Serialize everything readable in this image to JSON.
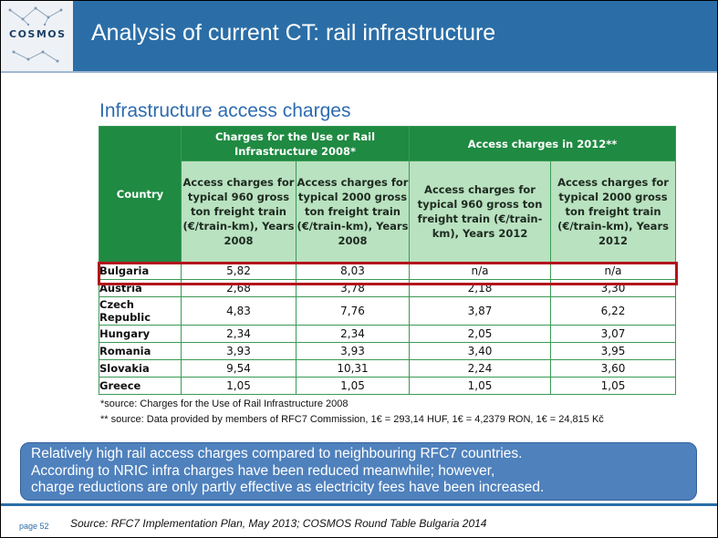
{
  "header": {
    "logo": "COSMOS",
    "title": "Analysis of current CT: rail infrastructure"
  },
  "subtitle": "Infrastructure access charges",
  "table": {
    "country_header": "Country",
    "group_2008": "Charges for the Use or Rail Infrastructure 2008*",
    "group_2012": "Access charges  in 2012**",
    "columns": [
      "Access charges for typical 960 gross ton freight train (€/train-km), Years 2008",
      "Access charges for typical 2000 gross ton freight train (€/train-km), Years 2008",
      "Access charges for typical 960 gross ton freight train (€/train-km), Years 2012",
      "Access charges  for typical 2000 gross ton freight train (€/train-km), Years 2012"
    ],
    "rows": [
      {
        "country": "Bulgaria",
        "values": [
          "5,82",
          "8,03",
          "n/a",
          "n/a"
        ]
      },
      {
        "country": "Austria",
        "values": [
          "2,68",
          "3,78",
          "2,18",
          "3,30"
        ]
      },
      {
        "country": "Czech Republic",
        "values": [
          "4,83",
          "7,76",
          "3,87",
          "6,22"
        ]
      },
      {
        "country": "Hungary",
        "values": [
          "2,34",
          "2,34",
          "2,05",
          "3,07"
        ]
      },
      {
        "country": "Romania",
        "values": [
          "3,93",
          "3,93",
          "3,40",
          "3,95"
        ]
      },
      {
        "country": "Slovakia",
        "values": [
          "9,54",
          "10,31",
          "2,24",
          "3,60"
        ]
      },
      {
        "country": "Greece",
        "values": [
          "1,05",
          "1,05",
          "1,05",
          "1,05"
        ]
      }
    ],
    "highlight_color": "#b3141c"
  },
  "footnotes": [
    "*source: Charges for the Use of Rail Infrastructure 2008",
    "** source: Data provided by members of RFC7 Commission, 1€ = 293,14 HUF, 1€ = 4,2379 RON, 1€ = 24,815 Kč"
  ],
  "callout": [
    "Relatively high rail access charges compared to neighbouring RFC7 countries.",
    "According to NRIC infra charges have been reduced meanwhile; however,",
    "charge reductions are only partly effective as electricity fees have been increased."
  ],
  "footer": {
    "page": "page 52",
    "source": "Source: RFC7 Implementation Plan, May 2013; COSMOS Round Table Bulgaria 2014"
  },
  "colors": {
    "header_blue": "#2b6ea7",
    "table_green": "#1f8a42",
    "table_light_green": "#b9e2c0",
    "callout_blue": "#4f81bd"
  }
}
